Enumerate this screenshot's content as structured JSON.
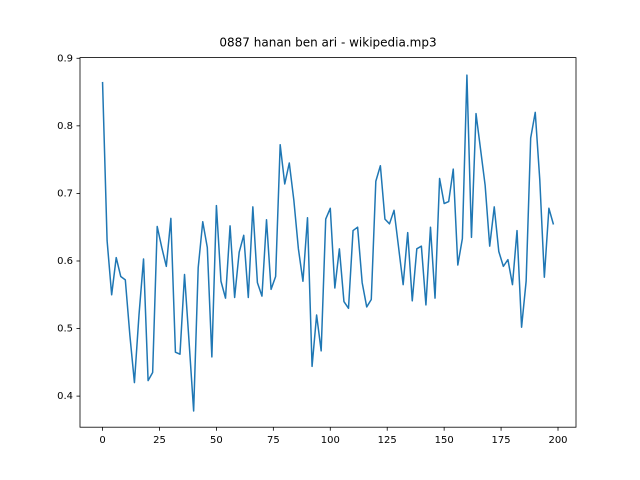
{
  "chart_data": {
    "type": "line",
    "title": "0887 hanan ben ari - wikipedia.mp3",
    "x": [
      0,
      2,
      4,
      6,
      8,
      10,
      12,
      14,
      16,
      18,
      20,
      22,
      24,
      26,
      28,
      30,
      32,
      34,
      36,
      38,
      40,
      42,
      44,
      46,
      48,
      50,
      52,
      54,
      56,
      58,
      60,
      62,
      64,
      66,
      68,
      70,
      72,
      74,
      76,
      78,
      80,
      82,
      84,
      86,
      88,
      90,
      92,
      94,
      96,
      98,
      100,
      102,
      104,
      106,
      108,
      110,
      112,
      114,
      116,
      118,
      120,
      122,
      124,
      126,
      128,
      130,
      132,
      134,
      136,
      138,
      140,
      142,
      144,
      146,
      148,
      150,
      152,
      154,
      156,
      158,
      160,
      162,
      164,
      166,
      168,
      170,
      172,
      174,
      176,
      178,
      180,
      182,
      184,
      186,
      188,
      190,
      192,
      194,
      196,
      198
    ],
    "series": [
      {
        "color": "#1f77b4",
        "values": [
          0.865,
          0.63,
          0.55,
          0.605,
          0.577,
          0.572,
          0.49,
          0.42,
          0.52,
          0.603,
          0.423,
          0.435,
          0.651,
          0.62,
          0.592,
          0.663,
          0.465,
          0.462,
          0.58,
          0.48,
          0.378,
          0.59,
          0.658,
          0.62,
          0.458,
          0.682,
          0.57,
          0.545,
          0.652,
          0.546,
          0.613,
          0.638,
          0.546,
          0.68,
          0.568,
          0.548,
          0.661,
          0.558,
          0.577,
          0.772,
          0.714,
          0.745,
          0.69,
          0.618,
          0.57,
          0.664,
          0.444,
          0.52,
          0.467,
          0.662,
          0.678,
          0.56,
          0.618,
          0.54,
          0.53,
          0.645,
          0.65,
          0.568,
          0.532,
          0.543,
          0.718,
          0.741,
          0.662,
          0.655,
          0.675,
          0.62,
          0.565,
          0.642,
          0.541,
          0.618,
          0.622,
          0.535,
          0.65,
          0.545,
          0.722,
          0.685,
          0.688,
          0.736,
          0.594,
          0.633,
          0.875,
          0.635,
          0.818,
          0.765,
          0.712,
          0.622,
          0.68,
          0.614,
          0.592,
          0.602,
          0.565,
          0.645,
          0.502,
          0.57,
          0.782,
          0.82,
          0.72,
          0.576,
          0.678,
          0.654
        ]
      }
    ],
    "xlim": [
      -9.9,
      207.9
    ],
    "ylim": [
      0.354,
      0.901
    ],
    "xticks": [
      0,
      25,
      50,
      75,
      100,
      125,
      150,
      175,
      200
    ],
    "yticks": [
      0.4,
      0.5,
      0.6,
      0.7,
      0.8,
      0.9
    ],
    "grid": false
  }
}
